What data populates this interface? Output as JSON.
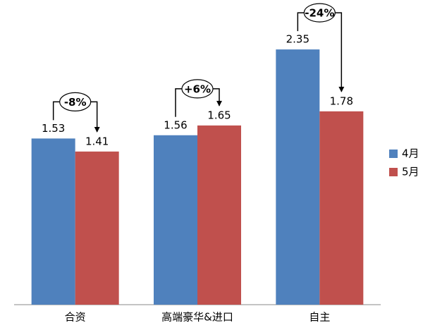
{
  "chart_data": {
    "type": "bar",
    "categories": [
      "合资",
      "高端豪华&进口",
      "自主"
    ],
    "series": [
      {
        "name": "4月",
        "color": "#4f81bd",
        "values": [
          1.53,
          1.56,
          2.35
        ]
      },
      {
        "name": "5月",
        "color": "#c0504d",
        "values": [
          1.41,
          1.65,
          1.78
        ]
      }
    ],
    "annotations": [
      "-8%",
      "+6%",
      "-24%"
    ],
    "ylim": [
      0,
      2.5
    ],
    "legend": "right"
  }
}
